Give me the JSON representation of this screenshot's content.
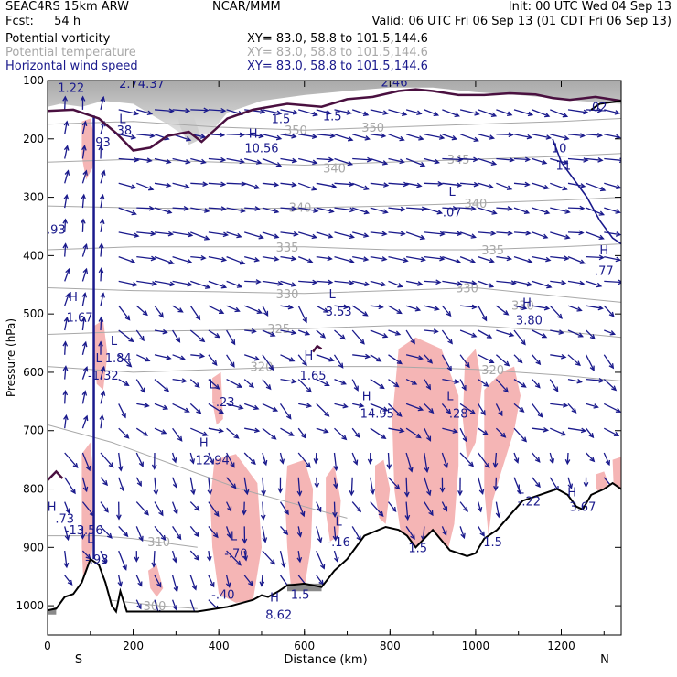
{
  "header": {
    "model": "SEAC4RS 15km ARW",
    "center": "NCAR/MMM",
    "init": "Init: 00 UTC Wed 04 Sep 13",
    "fcst_label": "Fcst:",
    "fcst_value": "54 h",
    "valid": "Valid: 06 UTC Fri 06 Sep 13 (01 CDT Fri 06 Sep 13)"
  },
  "fields": [
    {
      "name": "Potential vorticity",
      "xy": "XY=  83.0, 58.8 to 101.5,144.6",
      "color": "#000000"
    },
    {
      "name": "Potential temperature",
      "xy": "XY=  83.0, 58.8 to 101.5,144.6",
      "color": "#a8a8a8"
    },
    {
      "name": "Horizontal wind speed",
      "xy": "XY=  83.0, 58.8 to 101.5,144.6",
      "color": "#1a1a8c"
    }
  ],
  "colors": {
    "pv_shading": "#f5b5b5",
    "upper_shading": "#b8b8b8",
    "theta_contour": "#a8a8a8",
    "wind": "#1a1a8c",
    "terrain": "#000000",
    "tropopause": "#4a1040"
  },
  "chart_data": {
    "type": "cross-section",
    "xlabel": "Distance (km)",
    "ylabel": "Pressure (hPa)",
    "xlim": [
      0,
      1340
    ],
    "ylim": [
      1050,
      100
    ],
    "xticks": [
      "0",
      "200",
      "400",
      "600",
      "800",
      "1000",
      "1200"
    ],
    "yticks": [
      "100",
      "200",
      "300",
      "400",
      "500",
      "600",
      "700",
      "800",
      "900",
      "1000"
    ],
    "x_end_labels": {
      "left": "S",
      "right": "N"
    },
    "theta_contours": [
      {
        "label": "350",
        "x": 580,
        "p": 185
      },
      {
        "label": "350",
        "x": 760,
        "p": 180
      },
      {
        "label": "345",
        "x": 960,
        "p": 235
      },
      {
        "label": "340",
        "x": 670,
        "p": 250
      },
      {
        "label": "340",
        "x": 590,
        "p": 317
      },
      {
        "label": "340",
        "x": 1000,
        "p": 310
      },
      {
        "label": "335",
        "x": 560,
        "p": 385
      },
      {
        "label": "335",
        "x": 1040,
        "p": 390
      },
      {
        "label": "330",
        "x": 560,
        "p": 465
      },
      {
        "label": "330",
        "x": 980,
        "p": 455
      },
      {
        "label": "330",
        "x": 1110,
        "p": 485
      },
      {
        "label": "325",
        "x": 540,
        "p": 525
      },
      {
        "label": "320",
        "x": 500,
        "p": 590
      },
      {
        "label": "320",
        "x": 1040,
        "p": 595
      },
      {
        "label": "310",
        "x": 260,
        "p": 890
      },
      {
        "label": "300",
        "x": 250,
        "p": 1000
      }
    ],
    "annotations": [
      {
        "text": "1.22",
        "x": 55,
        "p": 112
      },
      {
        "text": "2.74.37",
        "x": 220,
        "p": 105
      },
      {
        "text": "2.46",
        "x": 810,
        "p": 102
      },
      {
        "text": "1.5",
        "x": 545,
        "p": 165
      },
      {
        "text": "1.5",
        "x": 665,
        "p": 160
      },
      {
        "text": "L",
        "x": 175,
        "p": 165
      },
      {
        "text": ".38",
        "x": 175,
        "p": 185
      },
      {
        "text": ".93",
        "x": 125,
        "p": 205
      },
      {
        "text": "H",
        "x": 480,
        "p": 190
      },
      {
        "text": "10.56",
        "x": 500,
        "p": 215
      },
      {
        "text": "10",
        "x": 1195,
        "p": 215
      },
      {
        "text": "11",
        "x": 1205,
        "p": 245
      },
      {
        "text": ".02",
        "x": 1285,
        "p": 145
      },
      {
        "text": "L",
        "x": 945,
        "p": 290
      },
      {
        "text": ".07",
        "x": 945,
        "p": 325
      },
      {
        "text": ".93",
        "x": 20,
        "p": 355
      },
      {
        "text": "H",
        "x": 1300,
        "p": 390
      },
      {
        "text": ".77",
        "x": 1300,
        "p": 425
      },
      {
        "text": "H",
        "x": 60,
        "p": 470
      },
      {
        "text": "1.67",
        "x": 75,
        "p": 505
      },
      {
        "text": "L",
        "x": 665,
        "p": 465
      },
      {
        "text": "3.53",
        "x": 680,
        "p": 495
      },
      {
        "text": "H",
        "x": 1120,
        "p": 480
      },
      {
        "text": "3.80",
        "x": 1125,
        "p": 510
      },
      {
        "text": "L",
        "x": 155,
        "p": 545
      },
      {
        "text": "1.84",
        "x": 165,
        "p": 575
      },
      {
        "text": "L",
        "x": 120,
        "p": 575
      },
      {
        "text": "-1.32",
        "x": 130,
        "p": 605
      },
      {
        "text": "H",
        "x": 610,
        "p": 570
      },
      {
        "text": "1.65",
        "x": 620,
        "p": 605
      },
      {
        "text": "L",
        "x": 385,
        "p": 620
      },
      {
        "text": "-.23",
        "x": 410,
        "p": 650
      },
      {
        "text": "H",
        "x": 745,
        "p": 640
      },
      {
        "text": "14.95",
        "x": 770,
        "p": 670
      },
      {
        "text": "L",
        "x": 940,
        "p": 640
      },
      {
        "text": ".28",
        "x": 960,
        "p": 670
      },
      {
        "text": "H",
        "x": 365,
        "p": 720
      },
      {
        "text": "12.94",
        "x": 385,
        "p": 750
      },
      {
        "text": "L",
        "x": 1105,
        "p": 800
      },
      {
        "text": "-.22",
        "x": 1125,
        "p": 820
      },
      {
        "text": "H",
        "x": 1225,
        "p": 805
      },
      {
        "text": "3.67",
        "x": 1250,
        "p": 830
      },
      {
        "text": "H",
        "x": 10,
        "p": 830
      },
      {
        "text": ".73",
        "x": 40,
        "p": 850
      },
      {
        "text": "-13.56",
        "x": 85,
        "p": 870
      },
      {
        "text": "L",
        "x": 680,
        "p": 855
      },
      {
        "text": "-.16",
        "x": 680,
        "p": 890
      },
      {
        "text": "L",
        "x": 100,
        "p": 885
      },
      {
        "text": "-.93",
        "x": 115,
        "p": 920
      },
      {
        "text": "L",
        "x": 435,
        "p": 880
      },
      {
        "text": "-.70",
        "x": 440,
        "p": 910
      },
      {
        "text": "1.5",
        "x": 865,
        "p": 900
      },
      {
        "text": "1.5",
        "x": 1040,
        "p": 890
      },
      {
        "text": "-.40",
        "x": 410,
        "p": 980
      },
      {
        "text": "H",
        "x": 530,
        "p": 985
      },
      {
        "text": "8.62",
        "x": 540,
        "p": 1015
      },
      {
        "text": "1.5",
        "x": 590,
        "p": 980
      }
    ]
  }
}
